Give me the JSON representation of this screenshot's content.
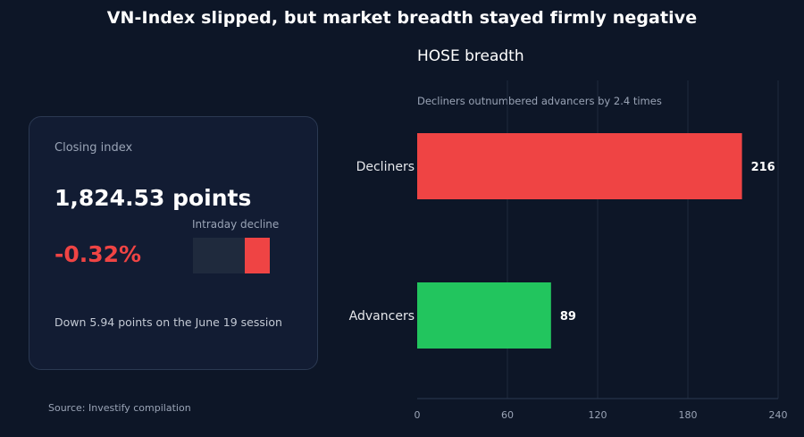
{
  "headline": "VN-Index slipped, but market breadth stayed firmly negative",
  "card": {
    "label": "Closing index",
    "value": "1,824.53 points",
    "change": "-0.32%",
    "mini_label": "Intraday decline",
    "mini_fill_fraction": 0.32,
    "note": "Down 5.94 points on the June 19 session"
  },
  "source": "Source: Investify compilation",
  "colors": {
    "background": "#0d1627",
    "decliners": "#ef4444",
    "advancers": "#22c55e",
    "grid": "#1f2a3d",
    "axis": "#2b3952"
  },
  "chart_data": {
    "type": "bar",
    "orientation": "horizontal",
    "title": "HOSE breadth",
    "subtitle": "Decliners outnumbered advancers by 2.4 times",
    "categories": [
      "Decliners",
      "Advancers"
    ],
    "values": [
      216,
      89
    ],
    "value_labels": [
      "216",
      "89"
    ],
    "bar_colors": [
      "#ef4444",
      "#22c55e"
    ],
    "xlim": [
      0,
      240
    ],
    "xticks": [
      0,
      60,
      120,
      180,
      240
    ],
    "xtick_labels": [
      "0",
      "60",
      "120",
      "180",
      "240"
    ],
    "grid": true
  }
}
